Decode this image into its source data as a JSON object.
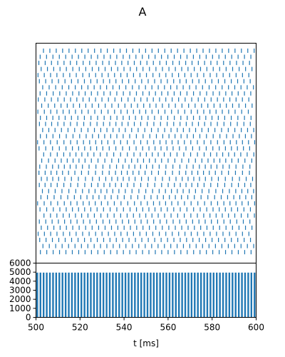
{
  "suptitle": "A",
  "chart_data": [
    {
      "type": "scatter",
      "subtype": "raster",
      "title": "",
      "xlabel": "",
      "ylabel": "",
      "xlim": [
        500,
        600
      ],
      "color": "#1f77b4",
      "x_ticks_shown": false,
      "y_ticks_shown": false,
      "rows": [
        {
          "phase": 0.5,
          "period": 2.9,
          "amp": 0.0
        },
        {
          "phase": 1.9,
          "period": 2.9,
          "amp": 0.0
        },
        {
          "phase": 1.2,
          "period": 2.9,
          "amp": 0.1
        },
        {
          "phase": 2.3,
          "period": 2.9,
          "amp": 0.1
        },
        {
          "phase": 0.9,
          "period": 2.9,
          "amp": 0.1
        },
        {
          "phase": 1.6,
          "period": 2.9,
          "amp": 0.1
        },
        {
          "phase": 0.3,
          "period": 2.9,
          "amp": 0.15
        },
        {
          "phase": 2.0,
          "period": 2.9,
          "amp": 0.15
        },
        {
          "phase": 1.1,
          "period": 2.9,
          "amp": 0.15
        },
        {
          "phase": 2.5,
          "period": 2.9,
          "amp": 0.2
        },
        {
          "phase": 0.7,
          "period": 2.9,
          "amp": 0.2
        },
        {
          "phase": 1.8,
          "period": 2.9,
          "amp": 0.2
        },
        {
          "phase": 1.4,
          "period": 2.9,
          "amp": 0.25
        },
        {
          "phase": 0.2,
          "period": 2.9,
          "amp": 0.25
        },
        {
          "phase": 2.2,
          "period": 2.9,
          "amp": 0.3
        },
        {
          "phase": 1.0,
          "period": 2.9,
          "amp": 0.3
        },
        {
          "phase": 1.7,
          "period": 2.9,
          "amp": 0.35
        },
        {
          "phase": 0.6,
          "period": 2.9,
          "amp": 0.4
        },
        {
          "phase": 2.4,
          "period": 2.9,
          "amp": 0.45
        },
        {
          "phase": 1.3,
          "period": 2.9,
          "amp": 0.5
        },
        {
          "phase": 0.8,
          "period": 2.9,
          "amp": 0.55
        },
        {
          "phase": 2.1,
          "period": 2.9,
          "amp": 0.6
        },
        {
          "phase": 1.5,
          "period": 2.9,
          "amp": 0.55
        },
        {
          "phase": 0.4,
          "period": 2.9,
          "amp": 0.45
        },
        {
          "phase": 2.6,
          "period": 2.9,
          "amp": 0.35
        },
        {
          "phase": 1.0,
          "period": 2.9,
          "amp": 0.3
        },
        {
          "phase": 1.9,
          "period": 2.9,
          "amp": 0.25
        },
        {
          "phase": 0.6,
          "period": 2.9,
          "amp": 0.2
        },
        {
          "phase": 1.4,
          "period": 2.9,
          "amp": 0.15
        },
        {
          "phase": 2.3,
          "period": 2.9,
          "amp": 0.1
        },
        {
          "phase": 0.9,
          "period": 2.9,
          "amp": 0.1
        },
        {
          "phase": 1.7,
          "period": 2.9,
          "amp": 0.05
        },
        {
          "phase": 0.3,
          "period": 2.9,
          "amp": 0.05
        },
        {
          "phase": 2.0,
          "period": 2.9,
          "amp": 0.0
        }
      ]
    },
    {
      "type": "bar",
      "subtype": "histogram",
      "title": "",
      "xlabel": "t [ms]",
      "ylabel": "",
      "xlim": [
        500,
        600
      ],
      "ylim": [
        0,
        6000
      ],
      "bin_width_ms": 0.1,
      "x_ticks": [
        500,
        520,
        540,
        560,
        580,
        600
      ],
      "y_ticks": [
        0,
        1000,
        2000,
        3000,
        4000,
        5000,
        6000
      ],
      "color": "#1f77b4",
      "peak_period_ms": 1.43,
      "peak_first_ms": 500.6,
      "peak_value": 4950,
      "baseline_value": 0
    }
  ]
}
